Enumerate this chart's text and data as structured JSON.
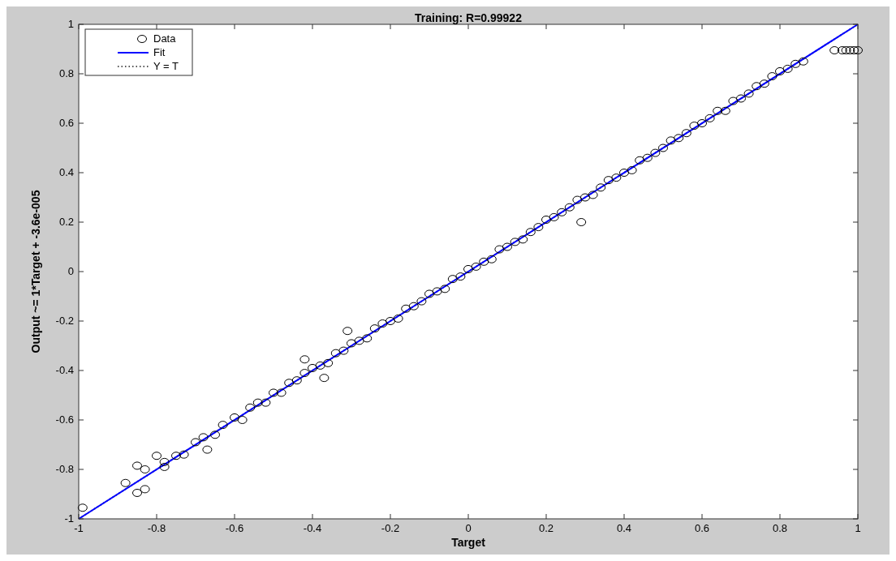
{
  "chart_data": {
    "type": "scatter",
    "title": "Training: R=0.99922",
    "xlabel": "Target",
    "ylabel": "Output ~= 1*Target + -3.6e-005",
    "xlim": [
      -1,
      1
    ],
    "ylim": [
      -1,
      1
    ],
    "xticks": [
      -1,
      -0.8,
      -0.6,
      -0.4,
      -0.2,
      0,
      0.2,
      0.4,
      0.6,
      0.8,
      1
    ],
    "yticks": [
      -1,
      -0.8,
      -0.6,
      -0.4,
      -0.2,
      0,
      0.2,
      0.4,
      0.6,
      0.8,
      1
    ],
    "grid": false,
    "legend": "top left",
    "series": [
      {
        "name": "Data",
        "color": "#000000",
        "marker": "circle",
        "x": [
          -0.99,
          -0.88,
          -0.85,
          -0.83,
          -0.85,
          -0.83,
          -0.8,
          -0.78,
          -0.78,
          -0.67,
          -0.42,
          -0.31,
          -0.37,
          0.29,
          0.94,
          0.96,
          0.97,
          0.98,
          0.99,
          1.0,
          -0.75,
          -0.73,
          -0.7,
          -0.68,
          -0.65,
          -0.63,
          -0.6,
          -0.58,
          -0.56,
          -0.54,
          -0.52,
          -0.5,
          -0.48,
          -0.46,
          -0.44,
          -0.42,
          -0.4,
          -0.38,
          -0.36,
          -0.34,
          -0.32,
          -0.3,
          -0.28,
          -0.26,
          -0.24,
          -0.22,
          -0.2,
          -0.18,
          -0.16,
          -0.14,
          -0.12,
          -0.1,
          -0.08,
          -0.06,
          -0.04,
          -0.02,
          0,
          0.02,
          0.04,
          0.06,
          0.08,
          0.1,
          0.12,
          0.14,
          0.16,
          0.18,
          0.2,
          0.22,
          0.24,
          0.26,
          0.28,
          0.3,
          0.32,
          0.34,
          0.36,
          0.38,
          0.4,
          0.42,
          0.44,
          0.46,
          0.48,
          0.5,
          0.52,
          0.54,
          0.56,
          0.58,
          0.6,
          0.62,
          0.64,
          0.66,
          0.68,
          0.7,
          0.72,
          0.74,
          0.76,
          0.78,
          0.8,
          0.82,
          0.84,
          0.86
        ],
        "values": [
          -0.955,
          -0.855,
          -0.895,
          -0.88,
          -0.785,
          -0.8,
          -0.745,
          -0.77,
          -0.79,
          -0.72,
          -0.355,
          -0.24,
          -0.43,
          0.2,
          0.895,
          0.895,
          0.895,
          0.895,
          0.895,
          0.895,
          -0.745,
          -0.74,
          -0.69,
          -0.67,
          -0.66,
          -0.62,
          -0.59,
          -0.6,
          -0.55,
          -0.53,
          -0.53,
          -0.49,
          -0.49,
          -0.45,
          -0.44,
          -0.41,
          -0.39,
          -0.38,
          -0.37,
          -0.33,
          -0.32,
          -0.29,
          -0.28,
          -0.27,
          -0.23,
          -0.21,
          -0.2,
          -0.19,
          -0.15,
          -0.14,
          -0.12,
          -0.09,
          -0.08,
          -0.07,
          -0.03,
          -0.02,
          0.01,
          0.02,
          0.04,
          0.05,
          0.09,
          0.1,
          0.12,
          0.13,
          0.16,
          0.18,
          0.21,
          0.22,
          0.24,
          0.26,
          0.29,
          0.3,
          0.31,
          0.34,
          0.37,
          0.38,
          0.4,
          0.41,
          0.45,
          0.46,
          0.48,
          0.5,
          0.53,
          0.54,
          0.56,
          0.59,
          0.6,
          0.62,
          0.65,
          0.65,
          0.69,
          0.7,
          0.72,
          0.75,
          0.76,
          0.79,
          0.81,
          0.82,
          0.84,
          0.85
        ]
      },
      {
        "name": "Fit",
        "type": "line",
        "color": "#0000ff",
        "line_style": "solid",
        "x": [
          -1,
          1
        ],
        "values": [
          -1,
          1
        ]
      },
      {
        "name": "Y = T",
        "type": "line",
        "color": "#555555",
        "line_style": "dotted",
        "x": [
          -1,
          1
        ],
        "values": [
          -1,
          1
        ]
      }
    ]
  }
}
